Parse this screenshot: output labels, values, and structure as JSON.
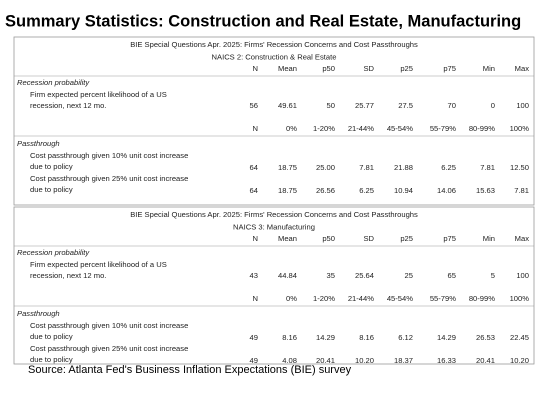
{
  "title": "Summary Statistics: Construction and Real Estate, Manufacturing",
  "tables": [
    {
      "header": [
        "BIE Special Questions Apr. 2025: Firms' Recession Concerns and Cost Passthroughs",
        "NAICS 2: Construction & Real Estate"
      ],
      "columns": [
        "N",
        "Mean",
        "p50",
        "SD",
        "p25",
        "p75",
        "Min",
        "Max"
      ],
      "recession": {
        "heading": "Recession probability",
        "label": [
          "Firm expected percent likelihood of a US",
          "recession, next 12 mo."
        ],
        "values": [
          "56",
          "49.61",
          "50",
          "25.77",
          "27.5",
          "70",
          "0",
          "100"
        ]
      },
      "buckets": [
        "N",
        "0%",
        "1-20%",
        "21-44%",
        "45-54%",
        "55-79%",
        "80-99%",
        "100%"
      ],
      "passthrough": {
        "heading": "Passthrough",
        "rows": [
          {
            "label": [
              "Cost passthrough given 10% unit cost increase",
              "due to policy"
            ],
            "values": [
              "64",
              "18.75",
              "25.00",
              "7.81",
              "21.88",
              "6.25",
              "7.81",
              "12.50"
            ]
          },
          {
            "label": [
              "Cost passthrough given 25% unit cost increase",
              "due to policy"
            ],
            "values": [
              "64",
              "18.75",
              "26.56",
              "6.25",
              "10.94",
              "14.06",
              "15.63",
              "7.81"
            ]
          }
        ]
      }
    },
    {
      "header": [
        "BIE Special Questions Apr. 2025: Firms' Recession Concerns and Cost Passthroughs",
        "NAICS 3: Manufacturing"
      ],
      "columns": [
        "N",
        "Mean",
        "p50",
        "SD",
        "p25",
        "p75",
        "Min",
        "Max"
      ],
      "recession": {
        "heading": "Recession probability",
        "label": [
          "Firm expected percent likelihood of a US",
          "recession, next 12 mo."
        ],
        "values": [
          "43",
          "44.84",
          "35",
          "25.64",
          "25",
          "65",
          "5",
          "100"
        ]
      },
      "buckets": [
        "N",
        "0%",
        "1-20%",
        "21-44%",
        "45-54%",
        "55-79%",
        "80-99%",
        "100%"
      ],
      "passthrough": {
        "heading": "Passthrough",
        "rows": [
          {
            "label": [
              "Cost passthrough given 10% unit cost increase",
              "due to policy"
            ],
            "values": [
              "49",
              "8.16",
              "14.29",
              "8.16",
              "6.12",
              "14.29",
              "26.53",
              "22.45"
            ]
          },
          {
            "label": [
              "Cost passthrough given 25% unit cost increase",
              "due to policy"
            ],
            "values": [
              "49",
              "4.08",
              "20.41",
              "10.20",
              "18.37",
              "16.33",
              "20.41",
              "10.20"
            ]
          }
        ]
      }
    }
  ],
  "source": "Source: Atlanta Fed's Business Inflation Expectations (BIE) survey"
}
